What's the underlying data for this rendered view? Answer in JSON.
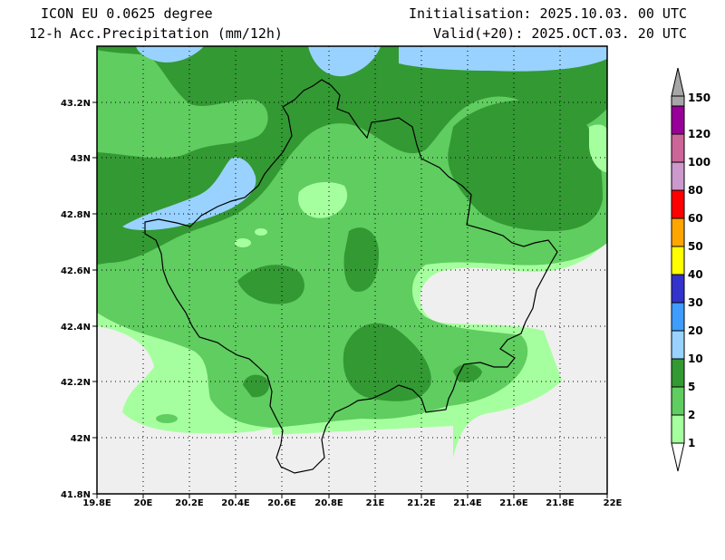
{
  "header": {
    "model": "ICON EU 0.0625 degree",
    "field": "12-h Acc.Precipitation (mm/12h)",
    "initialisation": "Initialisation: 2025.10.03. 00 UTC",
    "valid": "Valid(+20): 2025.OCT.03. 20 UTC"
  },
  "map": {
    "lon_range": [
      19.8,
      22.0
    ],
    "lat_range": [
      41.8,
      43.4
    ],
    "lon_ticks": [
      "19.8E",
      "20E",
      "20.2E",
      "20.4E",
      "20.6E",
      "20.8E",
      "21E",
      "21.2E",
      "21.4E",
      "21.6E",
      "21.8E",
      "22E"
    ],
    "lat_ticks": [
      "41.8N",
      "42N",
      "42.2N",
      "42.4N",
      "42.6N",
      "42.8N",
      "43N",
      "43.2N"
    ],
    "grid": "dotted",
    "background_color": "#efefef"
  },
  "colorbar": {
    "levels": [
      "1",
      "2",
      "5",
      "10",
      "20",
      "30",
      "40",
      "50",
      "60",
      "80",
      "100",
      "120",
      "150"
    ],
    "colors": [
      "#a6ff9e",
      "#5fcd5f",
      "#339933",
      "#99d2ff",
      "#3e9dff",
      "#3333cc",
      "#ffff00",
      "#ffa500",
      "#ff0000",
      "#cc99cc",
      "#cc6699",
      "#990099",
      "#a6a6a6"
    ]
  }
}
